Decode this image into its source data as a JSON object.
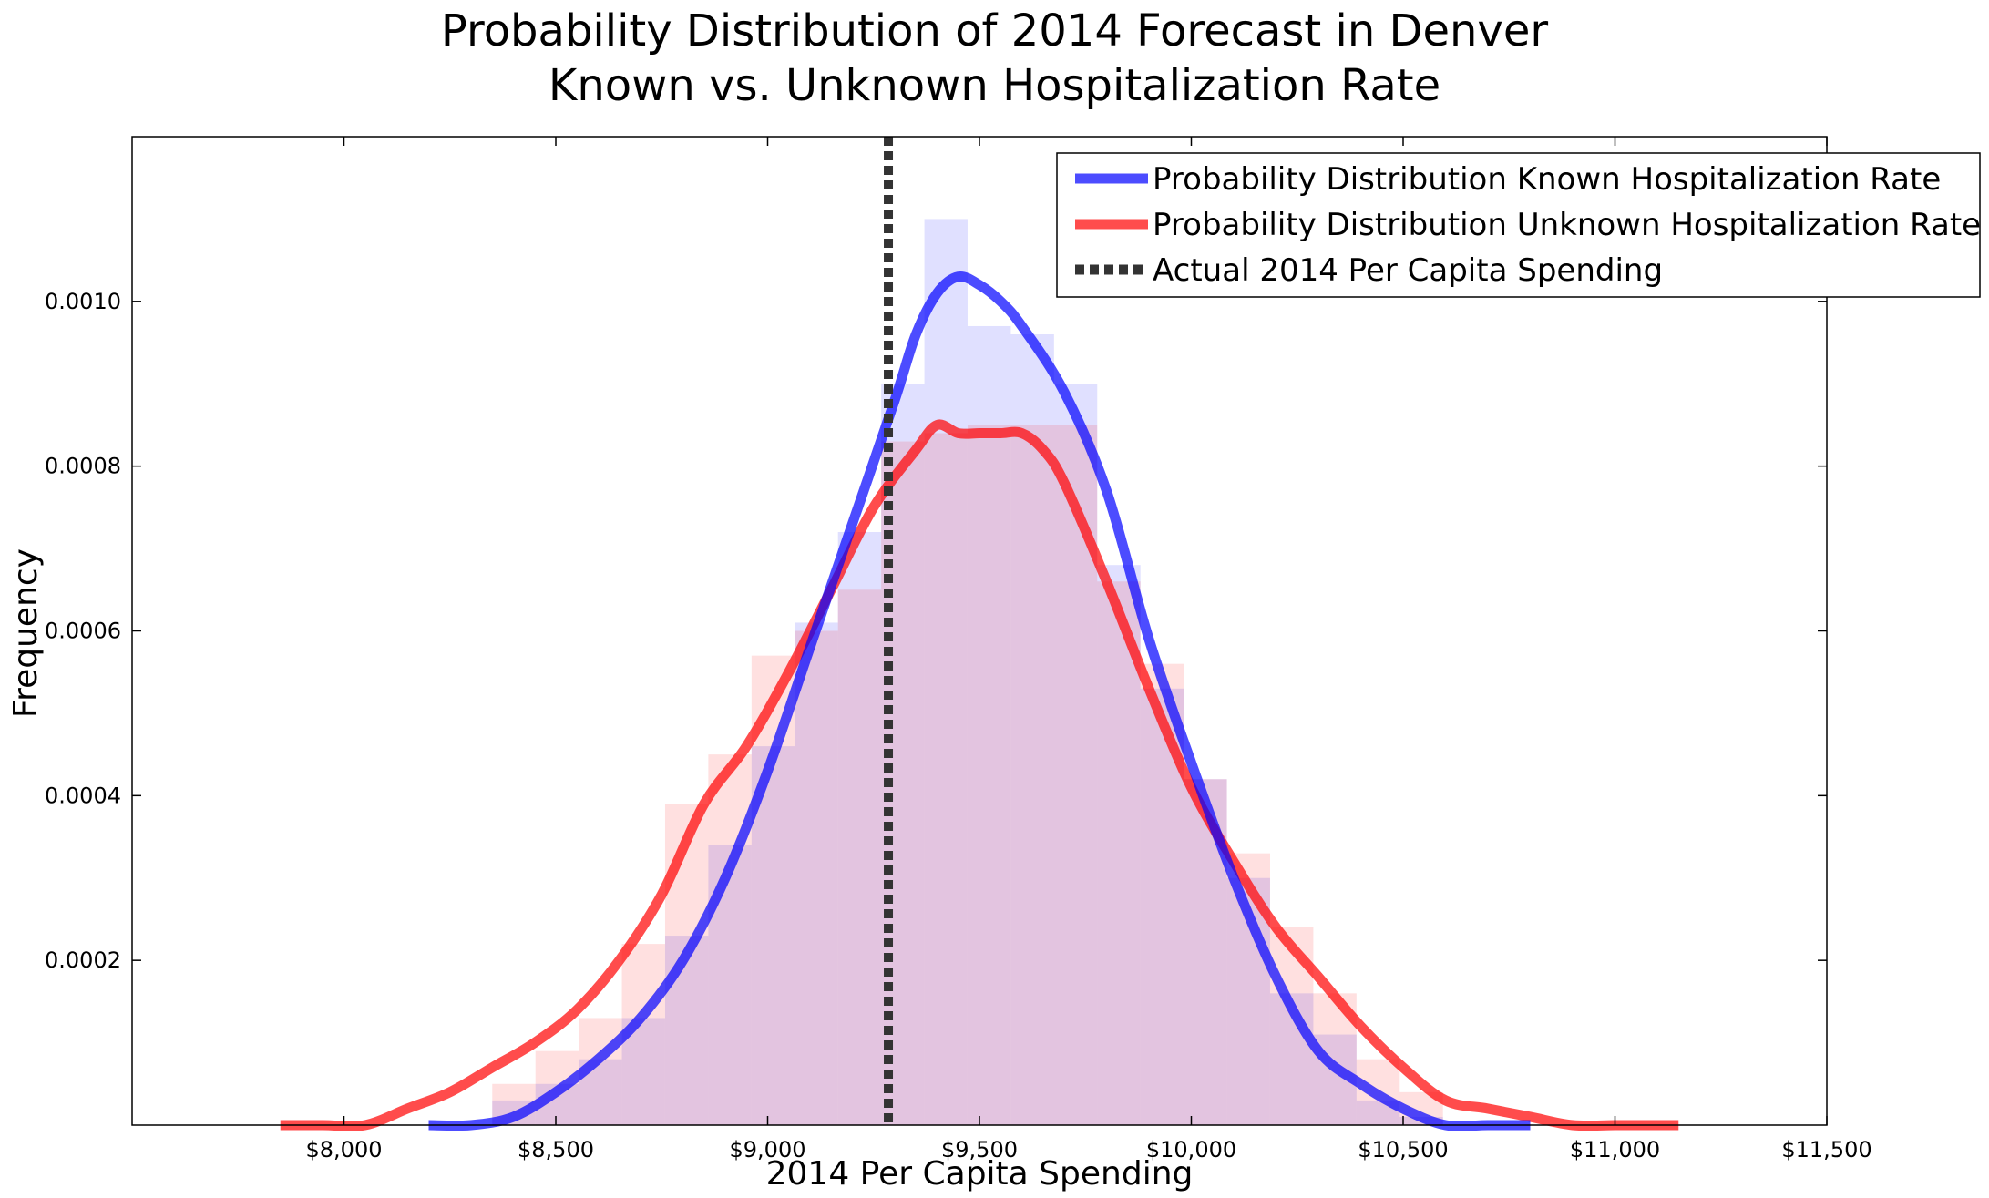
{
  "chart_data": {
    "type": "area",
    "title": "Probability Distribution of 2014 Forecast in Denver",
    "subtitle": "Known vs. Unknown Hospitalization Rate",
    "xlabel": "2014 Per Capita Spending",
    "ylabel": "Frequency",
    "xlim": [
      7500,
      11500
    ],
    "ylim": [
      0.0,
      0.0012
    ],
    "grid": false,
    "legend_position": "top-right",
    "x_ticks": [
      {
        "value": 8000,
        "label": "$8,000"
      },
      {
        "value": 8500,
        "label": "$8,500"
      },
      {
        "value": 9000,
        "label": "$9,000"
      },
      {
        "value": 9500,
        "label": "$9,500"
      },
      {
        "value": 10000,
        "label": "$10,000"
      },
      {
        "value": 10500,
        "label": "$10,500"
      },
      {
        "value": 11000,
        "label": "$11,000"
      },
      {
        "value": 11500,
        "label": "$11,500"
      }
    ],
    "y_ticks": [
      {
        "value": 0.0002,
        "label": "0.0002"
      },
      {
        "value": 0.0004,
        "label": "0.0004"
      },
      {
        "value": 0.0006,
        "label": "0.0006"
      },
      {
        "value": 0.0008,
        "label": "0.0008"
      },
      {
        "value": 0.001,
        "label": "0.0010"
      }
    ],
    "series": [
      {
        "name": "Probability Distribution Known Hospitalization Rate",
        "color": "#0000ff",
        "style": "solid",
        "x": [
          8200,
          8300,
          8400,
          8500,
          8600,
          8700,
          8800,
          8900,
          9000,
          9100,
          9200,
          9300,
          9350,
          9400,
          9450,
          9500,
          9550,
          9600,
          9700,
          9800,
          9900,
          10000,
          10100,
          10200,
          10300,
          10400,
          10500,
          10600,
          10700,
          10800
        ],
        "y": [
          0.0,
          0.0,
          1e-05,
          4e-05,
          8e-05,
          0.00013,
          0.0002,
          0.0003,
          0.00043,
          0.00058,
          0.00073,
          0.00088,
          0.00096,
          0.00101,
          0.00103,
          0.00102,
          0.001,
          0.00097,
          0.00089,
          0.00077,
          0.00059,
          0.00044,
          0.0003,
          0.00018,
          9e-05,
          5e-05,
          2e-05,
          0.0,
          0.0,
          0.0
        ]
      },
      {
        "name": "Probability Distribution Unknown Hospitalization Rate",
        "color": "#ff0000",
        "style": "solid",
        "x": [
          7850,
          7950,
          8050,
          8150,
          8250,
          8350,
          8450,
          8550,
          8650,
          8750,
          8850,
          8950,
          9050,
          9150,
          9250,
          9350,
          9400,
          9450,
          9500,
          9550,
          9600,
          9650,
          9700,
          9800,
          9900,
          10000,
          10100,
          10200,
          10300,
          10400,
          10500,
          10600,
          10700,
          10800,
          10900,
          11000,
          11100,
          11150
        ],
        "y": [
          0.0,
          0.0,
          0.0,
          2e-05,
          4e-05,
          7e-05,
          0.0001,
          0.00014,
          0.0002,
          0.00028,
          0.00039,
          0.00046,
          0.00055,
          0.00065,
          0.00075,
          0.00082,
          0.00085,
          0.00084,
          0.00084,
          0.00084,
          0.00084,
          0.00082,
          0.00078,
          0.00066,
          0.00053,
          0.00041,
          0.00032,
          0.00024,
          0.00018,
          0.00012,
          7e-05,
          3e-05,
          2e-05,
          1e-05,
          0.0,
          0.0,
          0.0,
          0.0
        ]
      },
      {
        "name": "Actual 2014 Per Capita Spending",
        "color": "#333333",
        "style": "dotted",
        "x_value": 9285
      }
    ],
    "histograms": [
      {
        "name": "Known Hospitalization Rate histogram",
        "color": "#0000ff",
        "opacity": 0.12,
        "bin_start": 8350,
        "bin_width": 102,
        "counts": [
          3e-05,
          5e-05,
          8e-05,
          0.00013,
          0.00023,
          0.00034,
          0.00046,
          0.00061,
          0.00072,
          0.0009,
          0.0011,
          0.00097,
          0.00096,
          0.0009,
          0.00068,
          0.00053,
          0.00042,
          0.0003,
          0.00016,
          0.00011,
          3e-05,
          1e-05
        ]
      },
      {
        "name": "Unknown Hospitalization Rate histogram",
        "color": "#ff0000",
        "opacity": 0.12,
        "bin_start": 8350,
        "bin_width": 102,
        "counts": [
          5e-05,
          9e-05,
          0.00013,
          0.00022,
          0.00039,
          0.00045,
          0.00057,
          0.0006,
          0.00065,
          0.00083,
          0.00084,
          0.00085,
          0.00085,
          0.00085,
          0.00066,
          0.00056,
          0.00042,
          0.00033,
          0.00024,
          0.00016,
          8e-05,
          4e-05
        ]
      }
    ]
  }
}
